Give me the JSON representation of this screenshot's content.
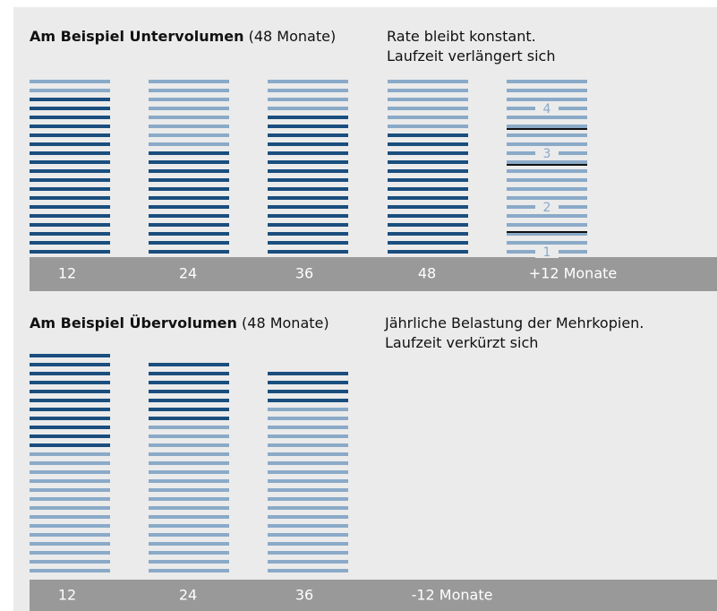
{
  "sections": [
    {
      "title_bold": "Am Beispiel Untervolumen",
      "title_rest": "(48 Monate)",
      "note": [
        "Rate bleibt konstant.",
        "Laufzeit verlängert sich"
      ],
      "columns": [
        {
          "label": "12",
          "segments": [
            {
              "shade": "light",
              "count": 2
            },
            {
              "shade": "dark",
              "count": 18
            }
          ]
        },
        {
          "label": "24",
          "segments": [
            {
              "shade": "light",
              "count": 8
            },
            {
              "shade": "dark",
              "count": 12
            }
          ]
        },
        {
          "label": "36",
          "segments": [
            {
              "shade": "light",
              "count": 4
            },
            {
              "shade": "dark",
              "count": 16
            }
          ]
        },
        {
          "label": "48",
          "segments": [
            {
              "shade": "light",
              "count": 6
            },
            {
              "shade": "dark",
              "count": 14
            }
          ]
        },
        {
          "label": "+12 Monate",
          "segments": [
            {
              "shade": "light",
              "count": 20
            }
          ],
          "markers": [
            "4",
            "3",
            "2",
            "1"
          ]
        }
      ]
    },
    {
      "title_bold": "Am Beispiel Übervolumen",
      "title_rest": "(48 Monate)",
      "note": [
        "Jährliche Belastung der Mehrkopien.",
        "Laufzeit verkürzt sich"
      ],
      "columns": [
        {
          "label": "12",
          "segments": [
            {
              "shade": "dark",
              "count": 11
            },
            {
              "shade": "light",
              "count": 14
            }
          ]
        },
        {
          "label": "24",
          "segments": [
            {
              "shade": "dark",
              "count": 7
            },
            {
              "shade": "light",
              "count": 17
            }
          ]
        },
        {
          "label": "36",
          "segments": [
            {
              "shade": "dark",
              "count": 4
            },
            {
              "shade": "light",
              "count": 19
            }
          ]
        },
        {
          "label": "-12 Monate",
          "segments": []
        }
      ]
    }
  ]
}
